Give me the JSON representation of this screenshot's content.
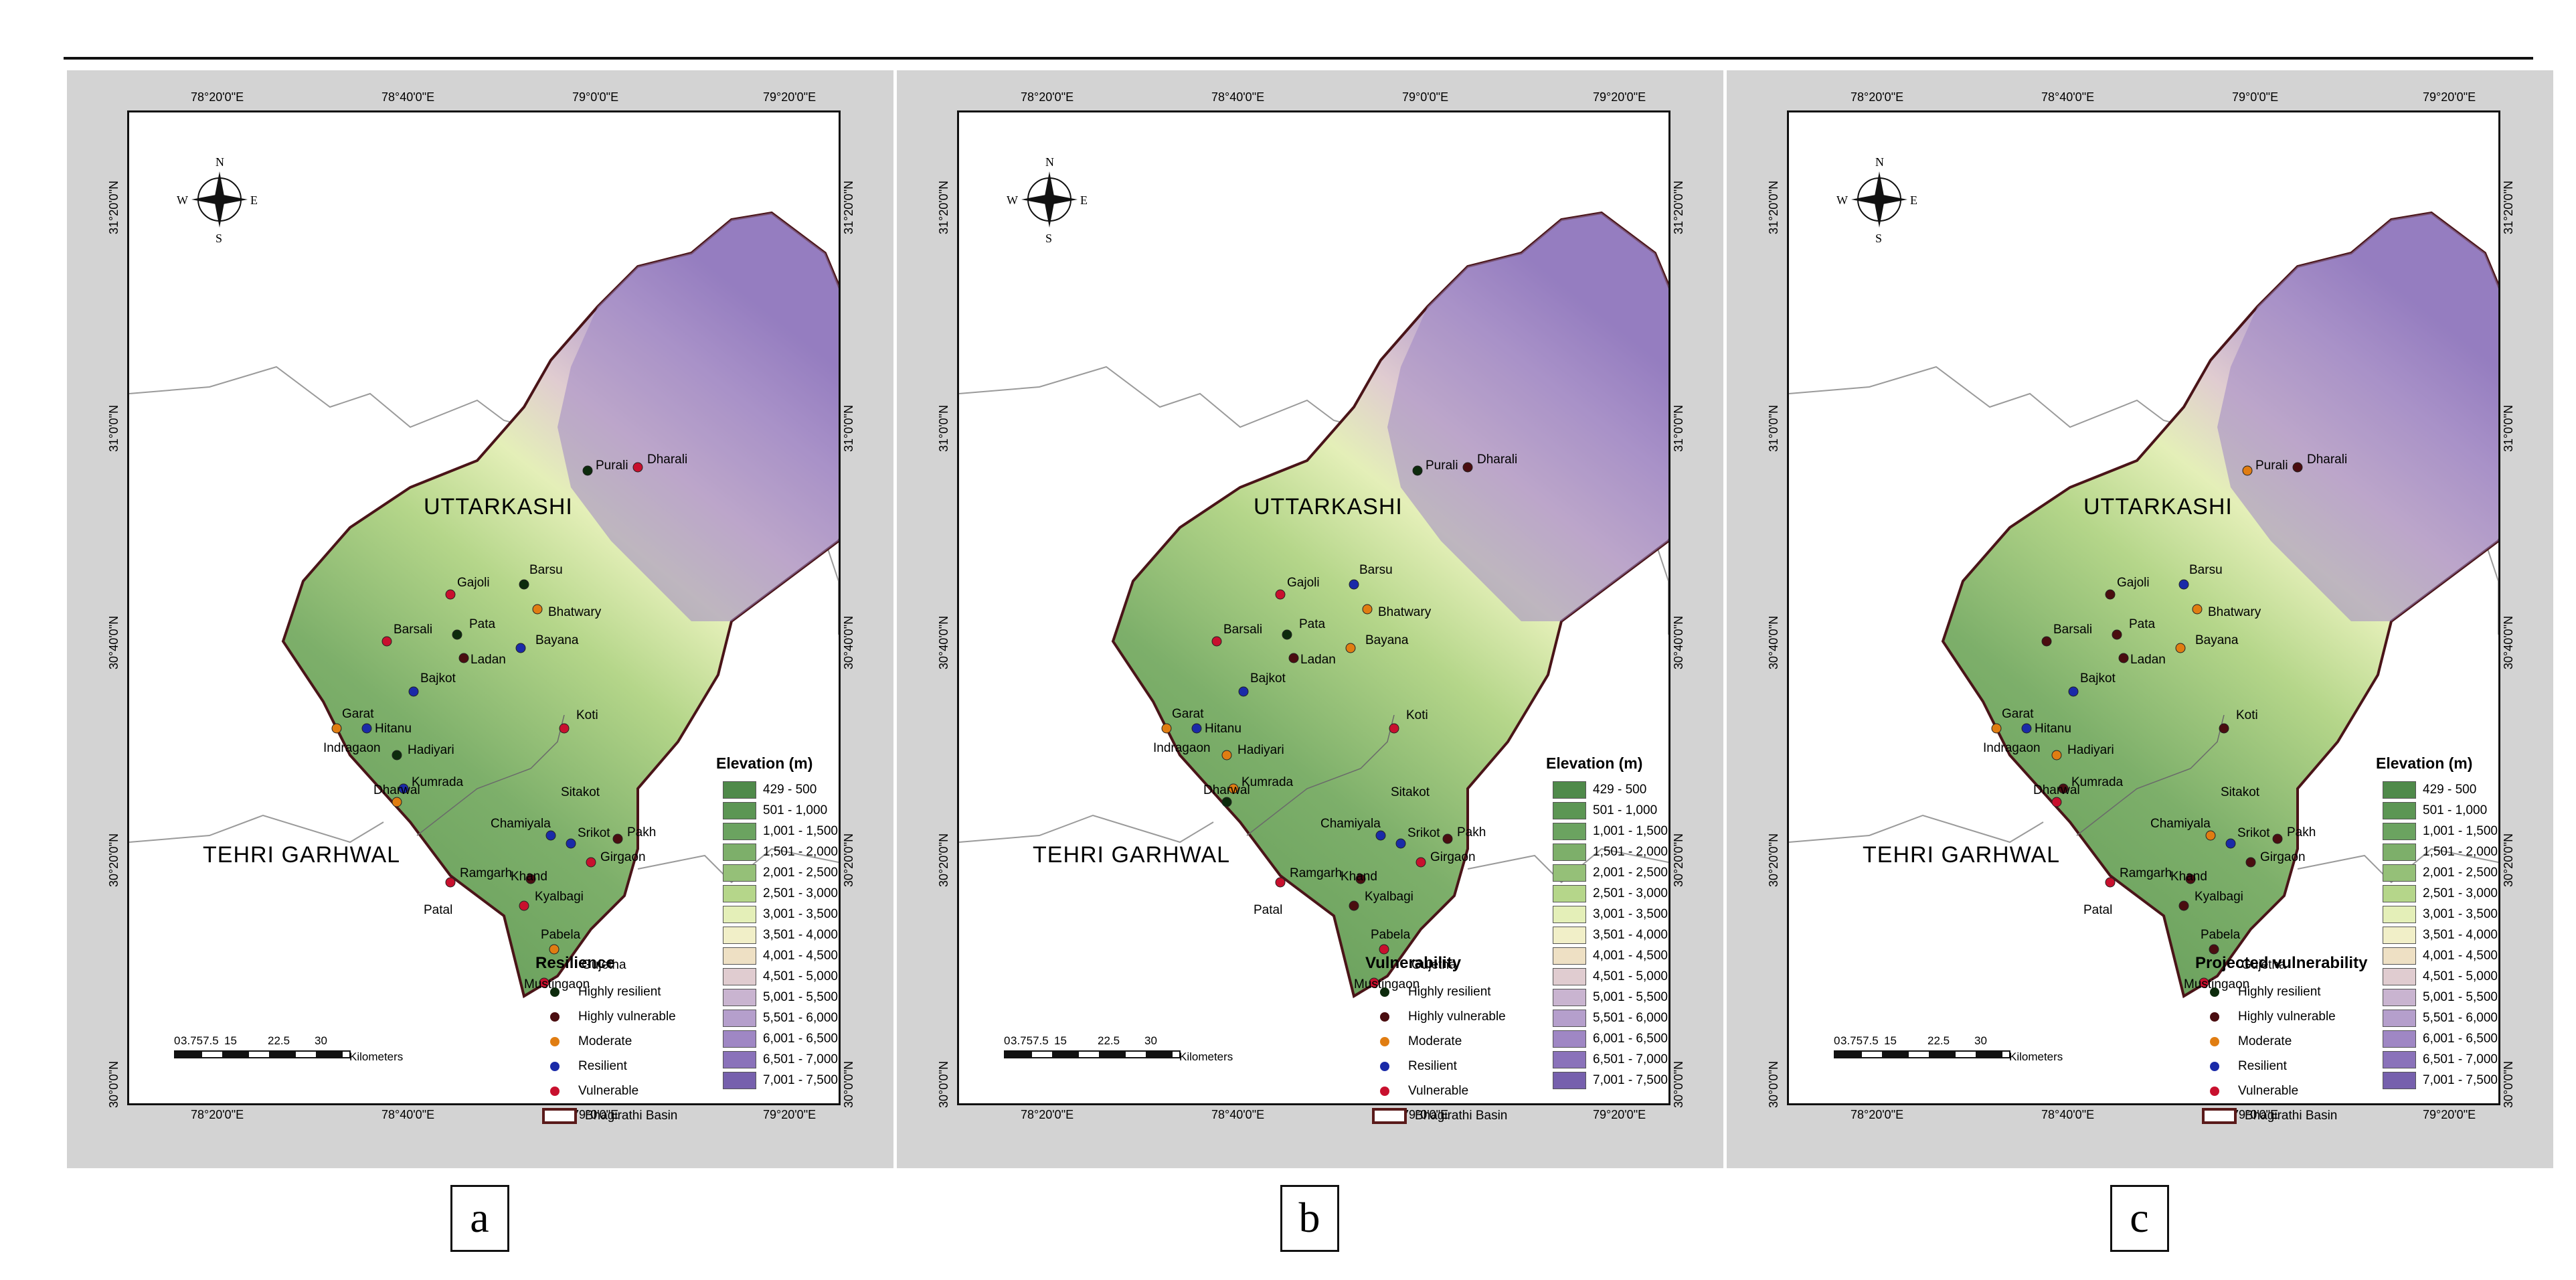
{
  "panels": [
    {
      "letter": "a",
      "legend_title": "Resilience",
      "legend_items": [
        "Highly resilient",
        "Highly vulnerable",
        "Moderate",
        "Resilient",
        "Vulnerable"
      ],
      "basin_label": "Bhagirathi Basin"
    },
    {
      "letter": "b",
      "legend_title": "Vulnerability",
      "legend_items": [
        "Highly resilient",
        "Highly vulnerable",
        "Moderate",
        "Resilient",
        "Vulnerable"
      ],
      "basin_label": "Bhagirathi Basin"
    },
    {
      "letter": "c",
      "legend_title": "Projected vulnerability",
      "legend_items": [
        "Highly resilient",
        "Highly vulnerable",
        "Moderate",
        "Resilient",
        "Vulnerable"
      ],
      "basin_label": "Bhagirathi Basin"
    }
  ],
  "elevation": {
    "title": "Elevation (m)",
    "classes": [
      "429 - 500",
      "501 - 1,000",
      "1,001 - 1,500",
      "1,501 - 2,000",
      "2,001 - 2,500",
      "2,501 - 3,000",
      "3,001 - 3,500",
      "3,501 - 4,000",
      "4,001 - 4,500",
      "4,501 - 5,000",
      "5,001 - 5,500",
      "5,501 - 6,000",
      "6,001 - 6,500",
      "6,501 - 7,000",
      "7,001 - 7,500"
    ],
    "colors": [
      "#4f8a4a",
      "#5c9654",
      "#6ba360",
      "#7daf6a",
      "#95c078",
      "#b5d68a",
      "#e4efb8",
      "#f1efc8",
      "#eee0c4",
      "#e0ccd0",
      "#c9b4d0",
      "#b59fcc",
      "#9f87c4",
      "#8a72ba",
      "#7660ad"
    ]
  },
  "category_colors": {
    "Highly resilient": "#0d2b0d",
    "Highly vulnerable": "#4a0d10",
    "Moderate": "#e07d12",
    "Resilient": "#1a2aa8",
    "Vulnerable": "#c8102e"
  },
  "longitude_ticks": [
    "78°20'0\"E",
    "78°40'0\"E",
    "79°0'0\"E",
    "79°20'0\"E"
  ],
  "latitude_ticks": [
    "30°0'0\"N",
    "30°20'0\"N",
    "30°40'0\"N",
    "31°0'0\"N",
    "31°20'0\"N"
  ],
  "compass": {
    "n": "N",
    "s": "S",
    "e": "E",
    "w": "W"
  },
  "scale": {
    "ticks": [
      "0",
      "3.757.5",
      "15",
      "22.5",
      "30"
    ],
    "unit": "Kilometers"
  },
  "districts": [
    "UTTARKASHI",
    "TEHRI GARHWAL"
  ],
  "places": [
    "Purali",
    "Dharali",
    "Gajoli",
    "Barsu",
    "Bhatwary",
    "Barsali",
    "Pata",
    "Ladan",
    "Bayana",
    "Bajkot",
    "Garat",
    "Hitanu",
    "Indragaon",
    "Hadiyari",
    "Koti",
    "Kumrada",
    "Dharwal",
    "Sitakot",
    "Chamiyala",
    "Srikot",
    "Pakh",
    "Girgaon",
    "Ramgarh",
    "Khand",
    "Patal",
    "Kyalbagi",
    "Pabela",
    "Gujetha",
    "Mustingaon"
  ],
  "place_status": {
    "a": {
      "Purali": "Highly resilient",
      "Dharali": "Vulnerable",
      "Gajoli": "Vulnerable",
      "Barsu": "Highly resilient",
      "Bhatwary": "Moderate",
      "Barsali": "Vulnerable",
      "Pata": "Highly resilient",
      "Ladan": "Highly vulnerable",
      "Bayana": "Resilient",
      "Bajkot": "Resilient",
      "Garat": "Moderate",
      "Hitanu": "Resilient",
      "Hadiyari": "Highly resilient",
      "Koti": "Vulnerable",
      "Kumrada": "Resilient",
      "Dharwal": "Moderate",
      "Srikot": "Resilient",
      "Chamiyala": "Resilient",
      "Girgaon": "Vulnerable",
      "Pakh": "Highly vulnerable",
      "Ramgarh": "Vulnerable",
      "Khand": "Highly vulnerable",
      "Kyalbagi": "Vulnerable",
      "Pabela": "Moderate",
      "Mustingaon": "Vulnerable"
    },
    "b": {
      "Purali": "Highly resilient",
      "Dharali": "Highly vulnerable",
      "Gajoli": "Vulnerable",
      "Barsu": "Resilient",
      "Bhatwary": "Moderate",
      "Barsali": "Vulnerable",
      "Pata": "Highly resilient",
      "Ladan": "Highly vulnerable",
      "Bayana": "Moderate",
      "Bajkot": "Resilient",
      "Garat": "Moderate",
      "Hitanu": "Resilient",
      "Hadiyari": "Moderate",
      "Koti": "Vulnerable",
      "Kumrada": "Moderate",
      "Dharwal": "Highly resilient",
      "Srikot": "Resilient",
      "Chamiyala": "Resilient",
      "Girgaon": "Vulnerable",
      "Pakh": "Highly vulnerable",
      "Ramgarh": "Vulnerable",
      "Khand": "Highly vulnerable",
      "Kyalbagi": "Highly vulnerable",
      "Pabela": "Vulnerable",
      "Mustingaon": "Vulnerable"
    },
    "c": {
      "Purali": "Moderate",
      "Dharali": "Highly vulnerable",
      "Gajoli": "Highly vulnerable",
      "Barsu": "Resilient",
      "Bhatwary": "Moderate",
      "Barsali": "Highly vulnerable",
      "Pata": "Highly vulnerable",
      "Ladan": "Highly vulnerable",
      "Bayana": "Moderate",
      "Bajkot": "Resilient",
      "Garat": "Moderate",
      "Hitanu": "Resilient",
      "Hadiyari": "Moderate",
      "Koti": "Highly vulnerable",
      "Kumrada": "Highly vulnerable",
      "Dharwal": "Vulnerable",
      "Srikot": "Resilient",
      "Chamiyala": "Moderate",
      "Girgaon": "Highly vulnerable",
      "Pakh": "Highly vulnerable",
      "Ramgarh": "Vulnerable",
      "Khand": "Highly vulnerable",
      "Kyalbagi": "Highly vulnerable",
      "Pabela": "Highly vulnerable",
      "Mustingaon": "Vulnerable"
    }
  }
}
